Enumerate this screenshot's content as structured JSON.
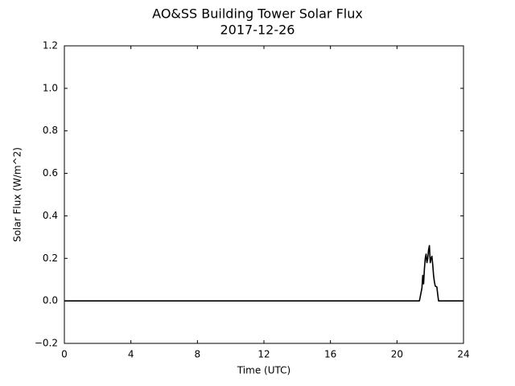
{
  "chart_data": {
    "type": "line",
    "title": "AO&SS Building Tower Solar Flux",
    "subtitle": "2017-12-26",
    "x_label": "Time (UTC)",
    "y_label": "Solar Flux (W/m^2)",
    "x": [
      0,
      21.35,
      21.4,
      21.45,
      21.5,
      21.55,
      21.6,
      21.65,
      21.7,
      21.75,
      21.8,
      21.85,
      21.9,
      21.95,
      22.0,
      22.05,
      22.1,
      22.15,
      22.2,
      22.25,
      22.3,
      22.4,
      22.45,
      22.5,
      24
    ],
    "series": [
      {
        "name": "Solar Flux",
        "color": "#000000",
        "values": [
          0,
          0,
          0.02,
          0.04,
          0.06,
          0.12,
          0.08,
          0.15,
          0.2,
          0.22,
          0.18,
          0.2,
          0.24,
          0.26,
          0.18,
          0.2,
          0.21,
          0.17,
          0.12,
          0.09,
          0.07,
          0.065,
          0.03,
          0,
          0
        ]
      }
    ],
    "xlim": [
      0,
      24
    ],
    "xticks": [
      0,
      4,
      8,
      12,
      16,
      20,
      24
    ],
    "ylim": [
      -0.2,
      1.2
    ],
    "yticks": [
      {
        "value": -0.2,
        "label": "−0.2"
      },
      {
        "value": 0,
        "label": "0.0"
      },
      0.2,
      0.4,
      0.6,
      0.8,
      {
        "value": 1,
        "label": "1.0"
      },
      1.2
    ],
    "grid": false
  }
}
